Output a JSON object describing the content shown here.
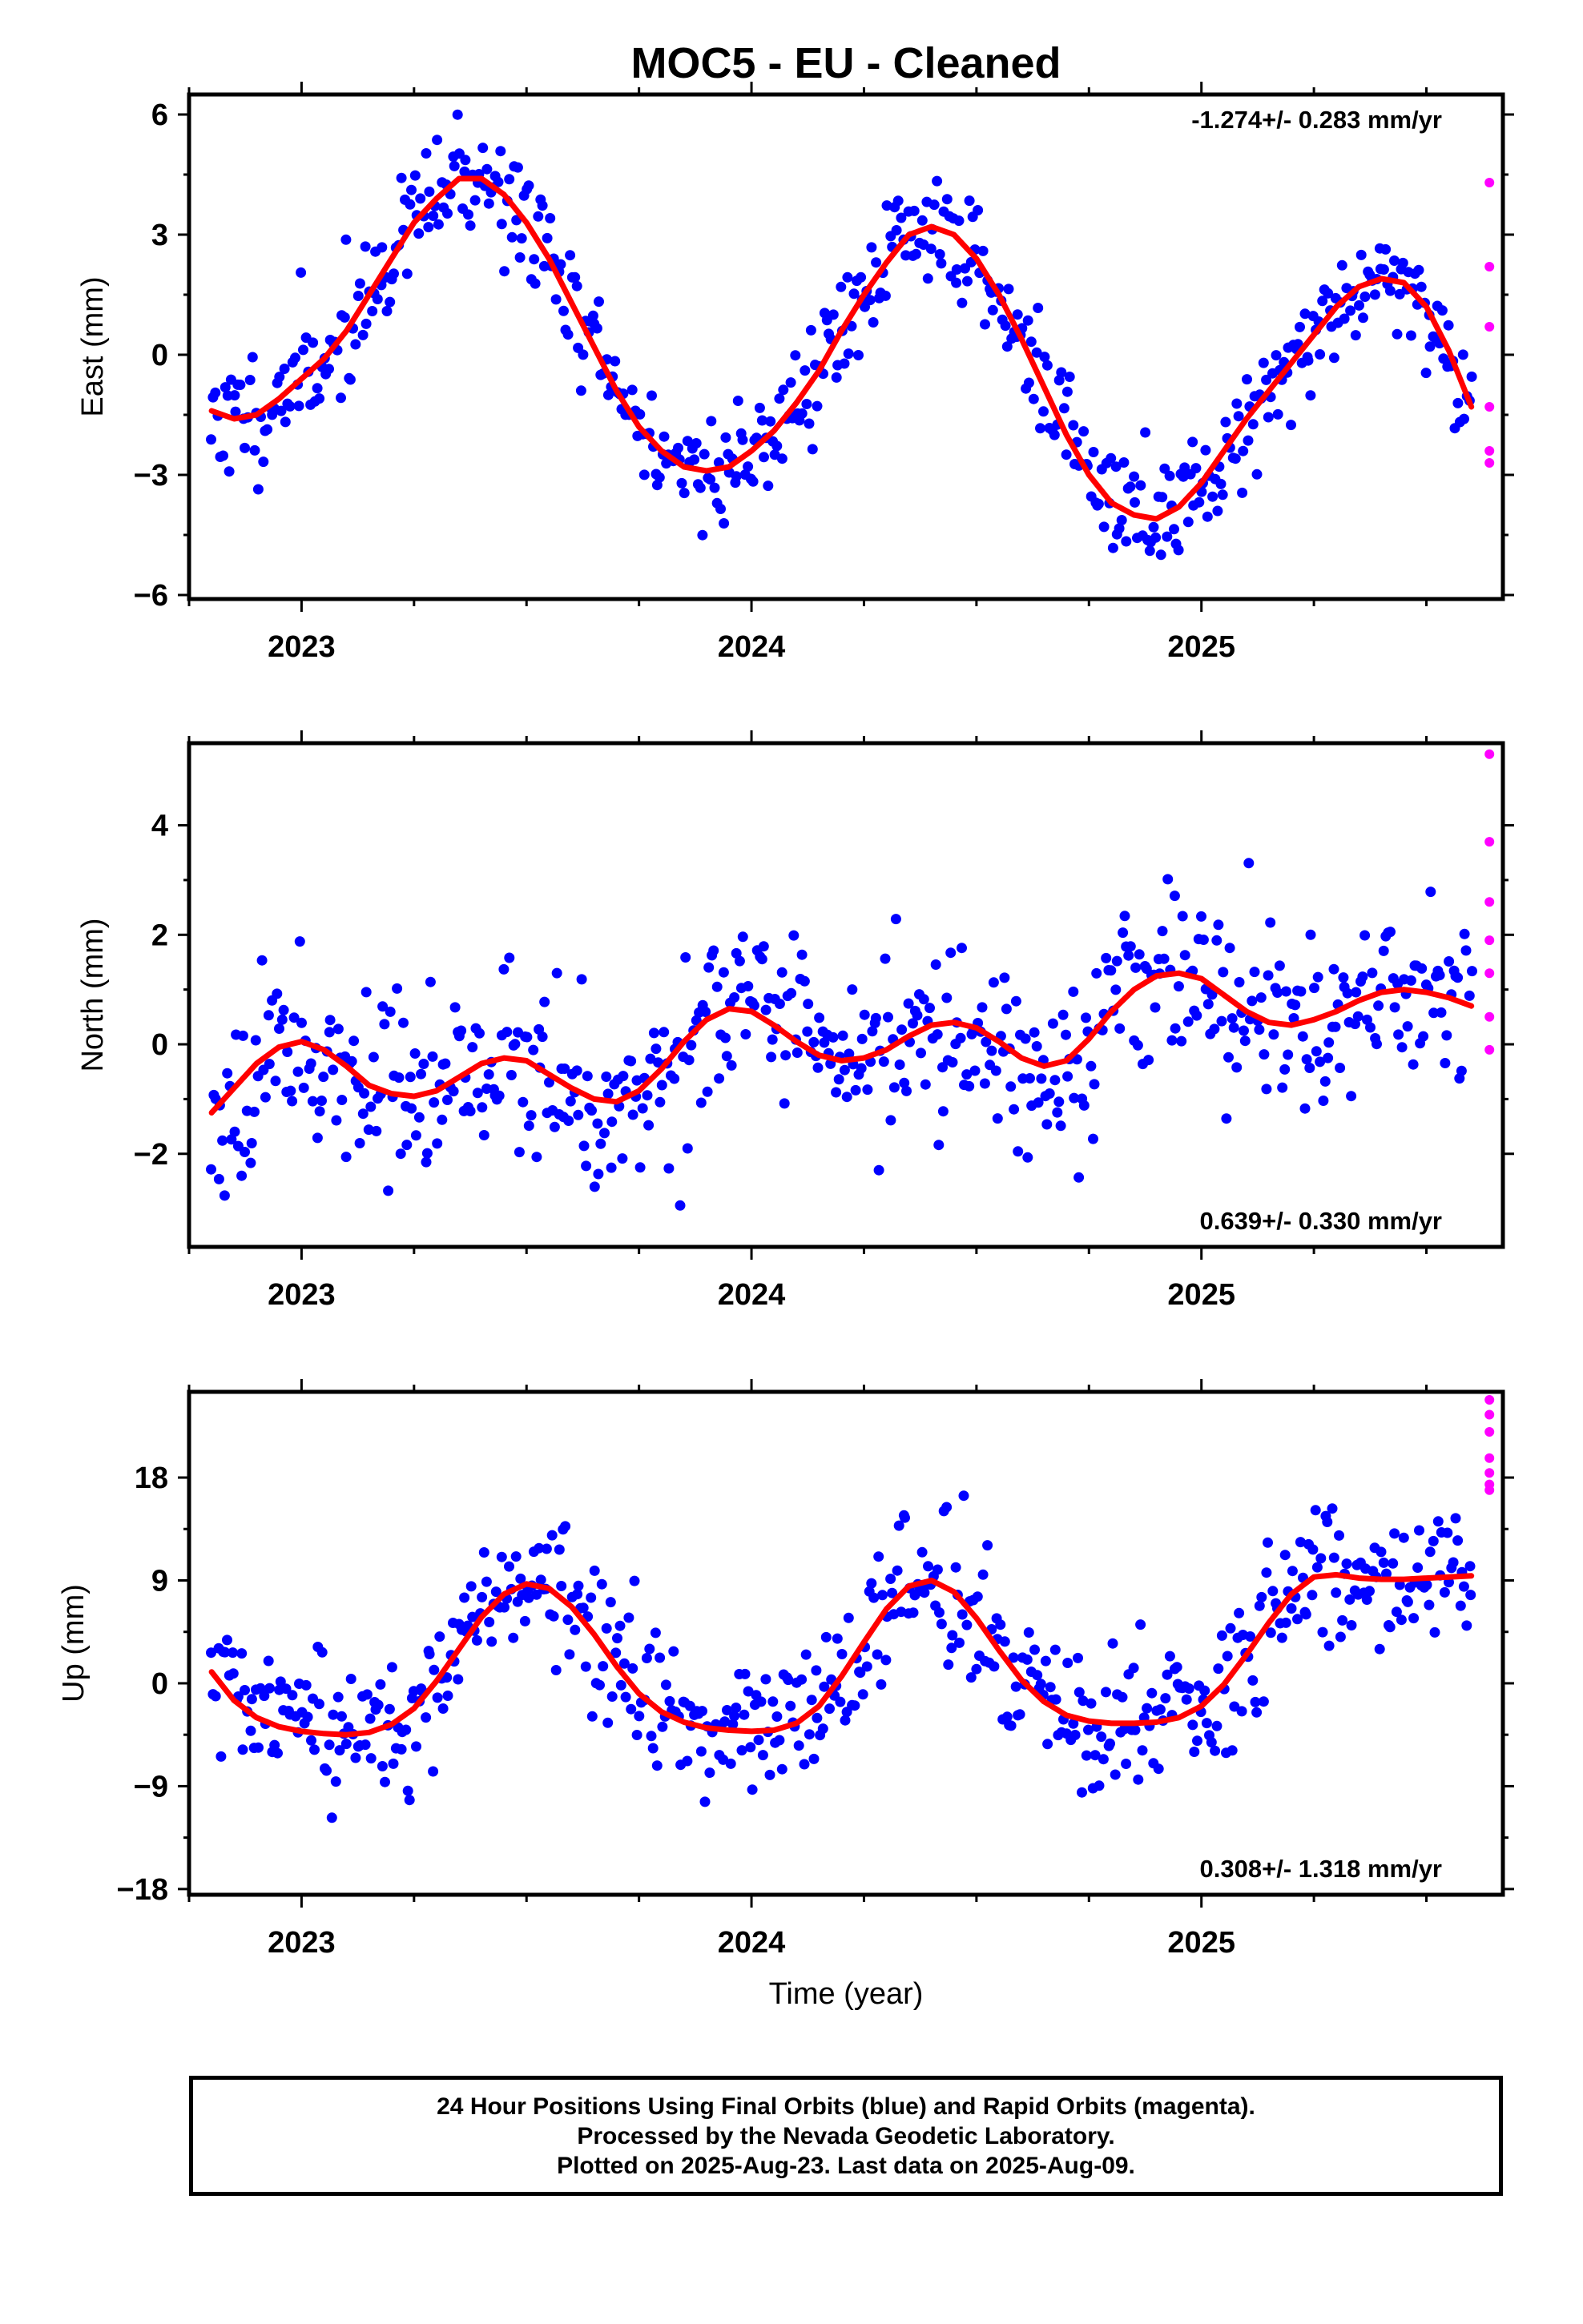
{
  "title": "MOC5  - EU - Cleaned",
  "footer": {
    "line1": "24 Hour Positions Using Final Orbits (blue) and Rapid Orbits (magenta).",
    "line2": "Processed by the Nevada Geodetic Laboratory.",
    "line3": "Plotted on 2025-Aug-23. Last data on 2025-Aug-09."
  },
  "colors": {
    "final_orbits": "#0000ff",
    "rapid_orbits": "#ff00ff",
    "fit": "#ff0000",
    "frame": "#000000"
  },
  "chart_data": [
    {
      "type": "scatter",
      "xlabel": "",
      "ylabel": "East (mm)",
      "xlim": [
        2022.75,
        2025.67
      ],
      "ylim": [
        -6.1,
        6.5
      ],
      "xticks": [
        2023,
        2024,
        2025
      ],
      "yticks": [
        -6,
        -3,
        0,
        3,
        6
      ],
      "ytick_labels": [
        "−6",
        "−3",
        "0",
        "3",
        "6"
      ],
      "rate_label": "-1.274+/- 0.283 mm/yr",
      "rate_position": "top-right",
      "fit": {
        "x": [
          2022.8,
          2022.85,
          2022.9,
          2022.95,
          2023.0,
          2023.05,
          2023.1,
          2023.15,
          2023.2,
          2023.25,
          2023.3,
          2023.35,
          2023.4,
          2023.45,
          2023.5,
          2023.55,
          2023.6,
          2023.65,
          2023.7,
          2023.75,
          2023.8,
          2023.85,
          2023.9,
          2023.95,
          2024.0,
          2024.05,
          2024.1,
          2024.15,
          2024.2,
          2024.25,
          2024.3,
          2024.35,
          2024.4,
          2024.45,
          2024.5,
          2024.55,
          2024.6,
          2024.65,
          2024.7,
          2024.75,
          2024.8,
          2024.85,
          2024.9,
          2024.95,
          2025.0,
          2025.05,
          2025.1,
          2025.15,
          2025.2,
          2025.25,
          2025.3,
          2025.35,
          2025.4,
          2025.45,
          2025.5,
          2025.55,
          2025.6
        ],
        "y": [
          -1.4,
          -1.6,
          -1.5,
          -1.1,
          -0.6,
          -0.1,
          0.6,
          1.5,
          2.4,
          3.3,
          3.9,
          4.4,
          4.4,
          4.0,
          3.3,
          2.4,
          1.3,
          0.2,
          -0.9,
          -1.8,
          -2.4,
          -2.8,
          -2.9,
          -2.8,
          -2.4,
          -1.9,
          -1.2,
          -0.4,
          0.6,
          1.5,
          2.3,
          3.0,
          3.2,
          3.0,
          2.4,
          1.5,
          0.4,
          -0.8,
          -2.0,
          -3.0,
          -3.7,
          -4.0,
          -4.1,
          -3.8,
          -3.2,
          -2.4,
          -1.6,
          -0.9,
          -0.2,
          0.5,
          1.2,
          1.7,
          1.9,
          1.8,
          1.2,
          0.1,
          -1.3
        ]
      },
      "rapid": {
        "x": [
          2025.64,
          2025.64,
          2025.64,
          2025.64,
          2025.64,
          2025.64
        ],
        "y": [
          4.3,
          2.2,
          0.7,
          -1.3,
          -2.4,
          -2.7
        ]
      },
      "final": {
        "seed": 11,
        "sigma": 0.75,
        "n": 560
      }
    },
    {
      "type": "scatter",
      "xlabel": "",
      "ylabel": "North (mm)",
      "xlim": [
        2022.75,
        2025.67
      ],
      "ylim": [
        -3.7,
        5.5
      ],
      "xticks": [
        2023,
        2024,
        2025
      ],
      "yticks": [
        -2,
        0,
        2,
        4
      ],
      "ytick_labels": [
        "−2",
        "0",
        "2",
        "4"
      ],
      "rate_label": "0.639+/- 0.330 mm/yr",
      "rate_position": "bottom-right",
      "fit": {
        "x": [
          2022.8,
          2022.85,
          2022.9,
          2022.95,
          2023.0,
          2023.05,
          2023.1,
          2023.15,
          2023.2,
          2023.25,
          2023.3,
          2023.35,
          2023.4,
          2023.45,
          2023.5,
          2023.55,
          2023.6,
          2023.65,
          2023.7,
          2023.75,
          2023.8,
          2023.85,
          2023.9,
          2023.95,
          2024.0,
          2024.05,
          2024.1,
          2024.15,
          2024.2,
          2024.25,
          2024.3,
          2024.35,
          2024.4,
          2024.45,
          2024.5,
          2024.55,
          2024.6,
          2024.65,
          2024.7,
          2024.75,
          2024.8,
          2024.85,
          2024.9,
          2024.95,
          2025.0,
          2025.05,
          2025.1,
          2025.15,
          2025.2,
          2025.25,
          2025.3,
          2025.35,
          2025.4,
          2025.45,
          2025.5,
          2025.55,
          2025.6
        ],
        "y": [
          -1.25,
          -0.8,
          -0.35,
          -0.05,
          0.05,
          -0.1,
          -0.4,
          -0.75,
          -0.9,
          -0.95,
          -0.85,
          -0.6,
          -0.35,
          -0.25,
          -0.3,
          -0.55,
          -0.8,
          -1.0,
          -1.05,
          -0.85,
          -0.45,
          0.05,
          0.45,
          0.65,
          0.6,
          0.35,
          0.05,
          -0.2,
          -0.3,
          -0.25,
          -0.1,
          0.15,
          0.35,
          0.4,
          0.3,
          0.05,
          -0.25,
          -0.4,
          -0.3,
          0.1,
          0.6,
          1.0,
          1.25,
          1.3,
          1.2,
          0.9,
          0.6,
          0.4,
          0.35,
          0.45,
          0.6,
          0.8,
          0.95,
          1.0,
          0.95,
          0.85,
          0.7
        ]
      },
      "rapid": {
        "x": [
          2025.64,
          2025.64,
          2025.64,
          2025.64,
          2025.64,
          2025.64,
          2025.64
        ],
        "y": [
          5.3,
          3.7,
          2.6,
          1.9,
          1.3,
          0.5,
          -0.1
        ]
      },
      "final": {
        "seed": 23,
        "sigma": 0.8,
        "n": 560
      }
    },
    {
      "type": "scatter",
      "xlabel": "Time (year)",
      "ylabel": "Up (mm)",
      "xlim": [
        2022.75,
        2025.67
      ],
      "ylim": [
        -18.5,
        25.5
      ],
      "xticks": [
        2023,
        2024,
        2025
      ],
      "yticks": [
        -18,
        -9,
        0,
        9,
        18
      ],
      "ytick_labels": [
        "−18",
        "−9",
        "0",
        "9",
        "18"
      ],
      "rate_label": "0.308+/- 1.318 mm/yr",
      "rate_position": "bottom-right",
      "fit": {
        "x": [
          2022.8,
          2022.85,
          2022.9,
          2022.95,
          2023.0,
          2023.05,
          2023.1,
          2023.15,
          2023.2,
          2023.25,
          2023.3,
          2023.35,
          2023.4,
          2023.45,
          2023.5,
          2023.55,
          2023.6,
          2023.65,
          2023.7,
          2023.75,
          2023.8,
          2023.85,
          2023.9,
          2023.95,
          2024.0,
          2024.05,
          2024.1,
          2024.15,
          2024.2,
          2024.25,
          2024.3,
          2024.35,
          2024.4,
          2024.45,
          2024.5,
          2024.55,
          2024.6,
          2024.65,
          2024.7,
          2024.75,
          2024.8,
          2024.85,
          2024.9,
          2024.95,
          2025.0,
          2025.05,
          2025.1,
          2025.15,
          2025.2,
          2025.25,
          2025.3,
          2025.35,
          2025.4,
          2025.45,
          2025.5,
          2025.55,
          2025.6
        ],
        "y": [
          1.0,
          -1.5,
          -3.0,
          -3.8,
          -4.2,
          -4.4,
          -4.5,
          -4.3,
          -3.6,
          -2.2,
          0.2,
          3.0,
          5.8,
          7.8,
          8.7,
          8.3,
          6.7,
          4.3,
          1.5,
          -0.9,
          -2.5,
          -3.4,
          -3.9,
          -4.1,
          -4.2,
          -4.1,
          -3.5,
          -2.0,
          0.6,
          3.6,
          6.5,
          8.5,
          9.0,
          8.0,
          5.7,
          2.9,
          0.3,
          -1.6,
          -2.8,
          -3.3,
          -3.5,
          -3.5,
          -3.4,
          -3.0,
          -2.0,
          -0.1,
          2.5,
          5.3,
          7.8,
          9.3,
          9.5,
          9.2,
          9.1,
          9.1,
          9.2,
          9.3,
          9.4
        ]
      },
      "rapid": {
        "x": [
          2025.64,
          2025.64,
          2025.64,
          2025.64,
          2025.64,
          2025.64,
          2025.64
        ],
        "y": [
          24.8,
          23.5,
          22.0,
          19.7,
          18.4,
          17.4,
          16.9
        ]
      },
      "final": {
        "seed": 37,
        "sigma": 3.1,
        "n": 560
      }
    }
  ]
}
